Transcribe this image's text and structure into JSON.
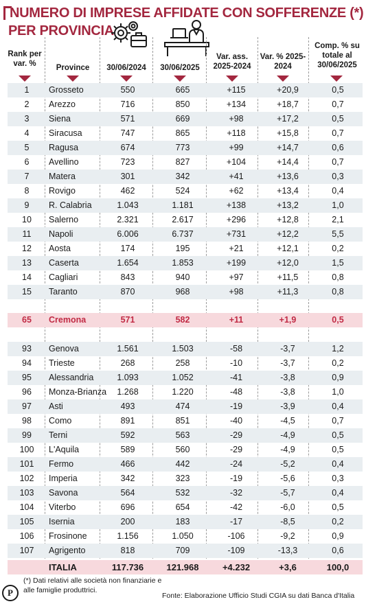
{
  "title_line1": "NUMERO DI IMPRESE AFFIDATE CON SOFFERENZE (*)",
  "title_line2": "PER PROVINCIA",
  "headers": {
    "rank": "Rank per var. %",
    "province": "Province",
    "v2024": "30/06/2024",
    "v2025": "30/06/2025",
    "var_ass": "Var. ass. 2025-2024",
    "var_pct": "Var. % 2025-2024",
    "comp": "Comp. % su totale al 30/06/2025"
  },
  "icons": [
    "gears-briefcase-icon",
    "person-at-desk-icon",
    "p-logo-icon"
  ],
  "colors": {
    "accent": "#a3273f",
    "highlight_row": "#f7d9dd",
    "shade_row": "#e9eef1",
    "highlight_text": "#c12a44"
  },
  "chart_data": {
    "type": "table",
    "columns": [
      "Rank per var. %",
      "Province",
      "30/06/2024",
      "30/06/2025",
      "Var. ass. 2025-2024",
      "Var. % 2025-2024",
      "Comp. % su totale al 30/06/2025"
    ],
    "top_rows": [
      [
        "1",
        "Grosseto",
        "550",
        "665",
        "+115",
        "+20,9",
        "0,5"
      ],
      [
        "2",
        "Arezzo",
        "716",
        "850",
        "+134",
        "+18,7",
        "0,7"
      ],
      [
        "3",
        "Siena",
        "571",
        "669",
        "+98",
        "+17,2",
        "0,5"
      ],
      [
        "4",
        "Siracusa",
        "747",
        "865",
        "+118",
        "+15,8",
        "0,7"
      ],
      [
        "5",
        "Ragusa",
        "674",
        "773",
        "+99",
        "+14,7",
        "0,6"
      ],
      [
        "6",
        "Avellino",
        "723",
        "827",
        "+104",
        "+14,4",
        "0,7"
      ],
      [
        "7",
        "Matera",
        "301",
        "342",
        "+41",
        "+13,6",
        "0,3"
      ],
      [
        "8",
        "Rovigo",
        "462",
        "524",
        "+62",
        "+13,4",
        "0,4"
      ],
      [
        "9",
        "R. Calabria",
        "1.043",
        "1.181",
        "+138",
        "+13,2",
        "1,0"
      ],
      [
        "10",
        "Salerno",
        "2.321",
        "2.617",
        "+296",
        "+12,8",
        "2,1"
      ],
      [
        "11",
        "Napoli",
        "6.006",
        "6.737",
        "+731",
        "+12,2",
        "5,5"
      ],
      [
        "12",
        "Aosta",
        "174",
        "195",
        "+21",
        "+12,1",
        "0,2"
      ],
      [
        "13",
        "Caserta",
        "1.654",
        "1.853",
        "+199",
        "+12,0",
        "1,5"
      ],
      [
        "14",
        "Cagliari",
        "843",
        "940",
        "+97",
        "+11,5",
        "0,8"
      ],
      [
        "15",
        "Taranto",
        "870",
        "968",
        "+98",
        "+11,3",
        "0,8"
      ]
    ],
    "highlight_row": [
      "65",
      "Cremona",
      "571",
      "582",
      "+11",
      "+1,9",
      "0,5"
    ],
    "bottom_rows": [
      [
        "93",
        "Genova",
        "1.561",
        "1.503",
        "-58",
        "-3,7",
        "1,2"
      ],
      [
        "94",
        "Trieste",
        "268",
        "258",
        "-10",
        "-3,7",
        "0,2"
      ],
      [
        "95",
        "Alessandria",
        "1.093",
        "1.052",
        "-41",
        "-3,8",
        "0,9"
      ],
      [
        "96",
        "Monza-Brianza",
        "1.268",
        "1.220",
        "-48",
        "-3,8",
        "1,0"
      ],
      [
        "97",
        "Asti",
        "493",
        "474",
        "-19",
        "-3,9",
        "0,4"
      ],
      [
        "98",
        "Como",
        "891",
        "851",
        "-40",
        "-4,5",
        "0,7"
      ],
      [
        "99",
        "Terni",
        "592",
        "563",
        "-29",
        "-4,9",
        "0,5"
      ],
      [
        "100",
        "L'Aquila",
        "589",
        "560",
        "-29",
        "-4,9",
        "0,5"
      ],
      [
        "101",
        "Fermo",
        "466",
        "442",
        "-24",
        "-5,2",
        "0,4"
      ],
      [
        "102",
        "Imperia",
        "342",
        "323",
        "-19",
        "-5,6",
        "0,3"
      ],
      [
        "103",
        "Savona",
        "564",
        "532",
        "-32",
        "-5,7",
        "0,4"
      ],
      [
        "104",
        "Viterbo",
        "696",
        "654",
        "-42",
        "-6,0",
        "0,5"
      ],
      [
        "105",
        "Isernia",
        "200",
        "183",
        "-17",
        "-8,5",
        "0,2"
      ],
      [
        "106",
        "Frosinone",
        "1.156",
        "1.050",
        "-106",
        "-9,2",
        "0,9"
      ],
      [
        "107",
        "Agrigento",
        "818",
        "709",
        "-109",
        "-13,3",
        "0,6"
      ]
    ],
    "total_row": [
      "",
      "ITALIA",
      "117.736",
      "121.968",
      "+4.232",
      "+3,6",
      "100,0"
    ]
  },
  "footnote": "(*) Dati relativi alle società non finanziarie e alle famiglie produttrici.",
  "source": "Fonte: Elaborazione Ufficio Studi CGIA su dati Banca d'Italia",
  "logo_letter": "P"
}
